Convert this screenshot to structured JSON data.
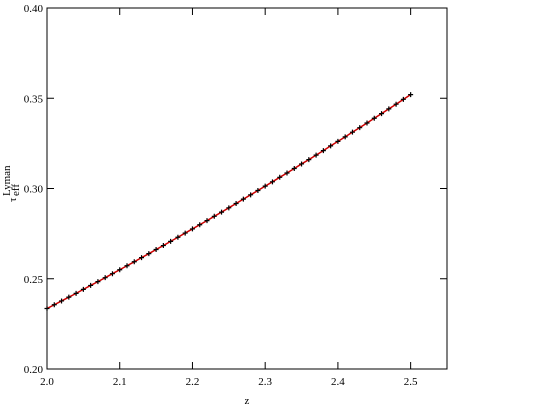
{
  "chart_data": {
    "type": "line",
    "xlabel": "z",
    "ylabel": {
      "symbol": "τ",
      "subscript": "eff",
      "superscript": "Lyman"
    },
    "x": [
      2.0,
      2.01,
      2.02,
      2.03,
      2.04,
      2.05,
      2.06,
      2.07,
      2.08,
      2.09,
      2.1,
      2.11,
      2.12,
      2.13,
      2.14,
      2.15,
      2.16,
      2.17,
      2.18,
      2.19,
      2.2,
      2.21,
      2.22,
      2.23,
      2.24,
      2.25,
      2.26,
      2.27,
      2.28,
      2.29,
      2.3,
      2.31,
      2.32,
      2.33,
      2.34,
      2.35,
      2.36,
      2.37,
      2.38,
      2.39,
      2.4,
      2.41,
      2.42,
      2.43,
      2.44,
      2.45,
      2.46,
      2.47,
      2.48,
      2.49,
      2.5
    ],
    "series": [
      {
        "color": "#cc0000",
        "marker_color": "#000000",
        "values": [
          0.2335,
          0.2356,
          0.2377,
          0.2398,
          0.2419,
          0.2441,
          0.2463,
          0.2484,
          0.2506,
          0.2528,
          0.255,
          0.2572,
          0.2594,
          0.2617,
          0.2639,
          0.2662,
          0.2684,
          0.2707,
          0.273,
          0.2753,
          0.2776,
          0.2799,
          0.2822,
          0.2846,
          0.2869,
          0.2893,
          0.2917,
          0.2941,
          0.2965,
          0.2989,
          0.3013,
          0.3037,
          0.3062,
          0.3086,
          0.3111,
          0.3136,
          0.316,
          0.3185,
          0.321,
          0.3236,
          0.3261,
          0.3286,
          0.3312,
          0.3337,
          0.3363,
          0.3389,
          0.3415,
          0.3441,
          0.3467,
          0.3494,
          0.352
        ]
      }
    ],
    "xlim": [
      2.0,
      2.55
    ],
    "xticks": [
      {
        "value": 2.0,
        "label": "2.0"
      },
      2.1,
      2.2,
      2.3,
      2.4,
      2.5
    ],
    "ylim": [
      0.2,
      0.4
    ],
    "yticks": [
      {
        "value": 0.2,
        "label": "0.20"
      },
      0.25,
      {
        "value": 0.3,
        "label": "0.30"
      },
      0.35,
      {
        "value": 0.4,
        "label": "0.40"
      }
    ]
  }
}
